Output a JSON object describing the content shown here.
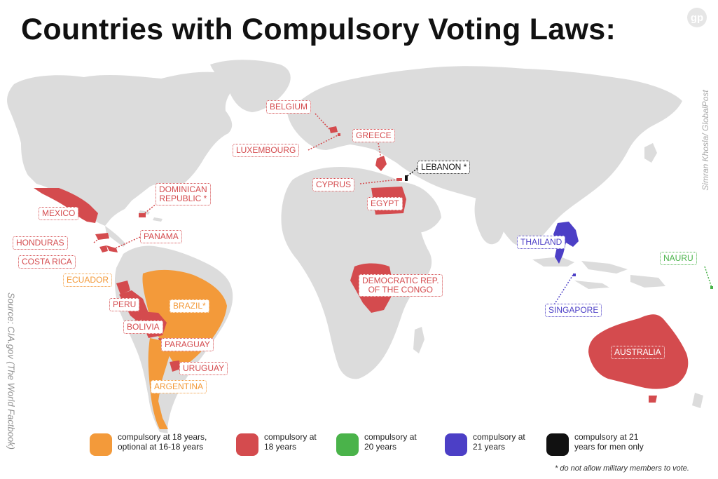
{
  "title": "Countries with Compulsory Voting Laws:",
  "logo_text": "gp",
  "credit": "Simran Khosla/ GlobalPost",
  "source": "Source: CIA.gov (The World Factbook)",
  "footnote": "* do not allow military members to vote.",
  "colors": {
    "land": "#dcdcdc",
    "compulsory_18_optional_16_18": "#f39a3a",
    "compulsory_18": "#d44b4e",
    "compulsory_20": "#4ab34a",
    "compulsory_21": "#4c3fc6",
    "compulsory_21_men_only": "#111111"
  },
  "countries": {
    "belgium": "BELGIUM",
    "luxembourg": "LUXEMBOURG",
    "greece": "GREECE",
    "lebanon": "LEBANON *",
    "cyprus": "CYPRUS",
    "egypt": "EGYPT",
    "dominican_republic": "DOMINICAN\nREPUBLIC *",
    "mexico": "MEXICO",
    "panama": "PANAMA",
    "honduras": "HONDURAS",
    "costa_rica": "COSTA RICA",
    "ecuador": "ECUADOR",
    "peru": "PERU",
    "brazil": "BRAZIL*",
    "bolivia": "BOLIVIA",
    "paraguay": "PARAGUAY",
    "uruguay": "URUGUAY",
    "argentina": "ARGENTINA",
    "drc": "DEMOCRATIC REP.\nOF THE CONGO",
    "thailand": "THAILAND",
    "singapore": "SINGAPORE",
    "nauru": "NAURU",
    "australia": "AUSTRALIA"
  },
  "legend": [
    {
      "color": "#f39a3a",
      "text": "compulsory at 18 years,\noptional at 16-18 years"
    },
    {
      "color": "#d44b4e",
      "text": "compulsory at\n18 years"
    },
    {
      "color": "#4ab34a",
      "text": "compulsory at\n20 years"
    },
    {
      "color": "#4c3fc6",
      "text": "compulsory at\n21 years"
    },
    {
      "color": "#111111",
      "text": "compulsory at 21\nyears for men only"
    }
  ]
}
